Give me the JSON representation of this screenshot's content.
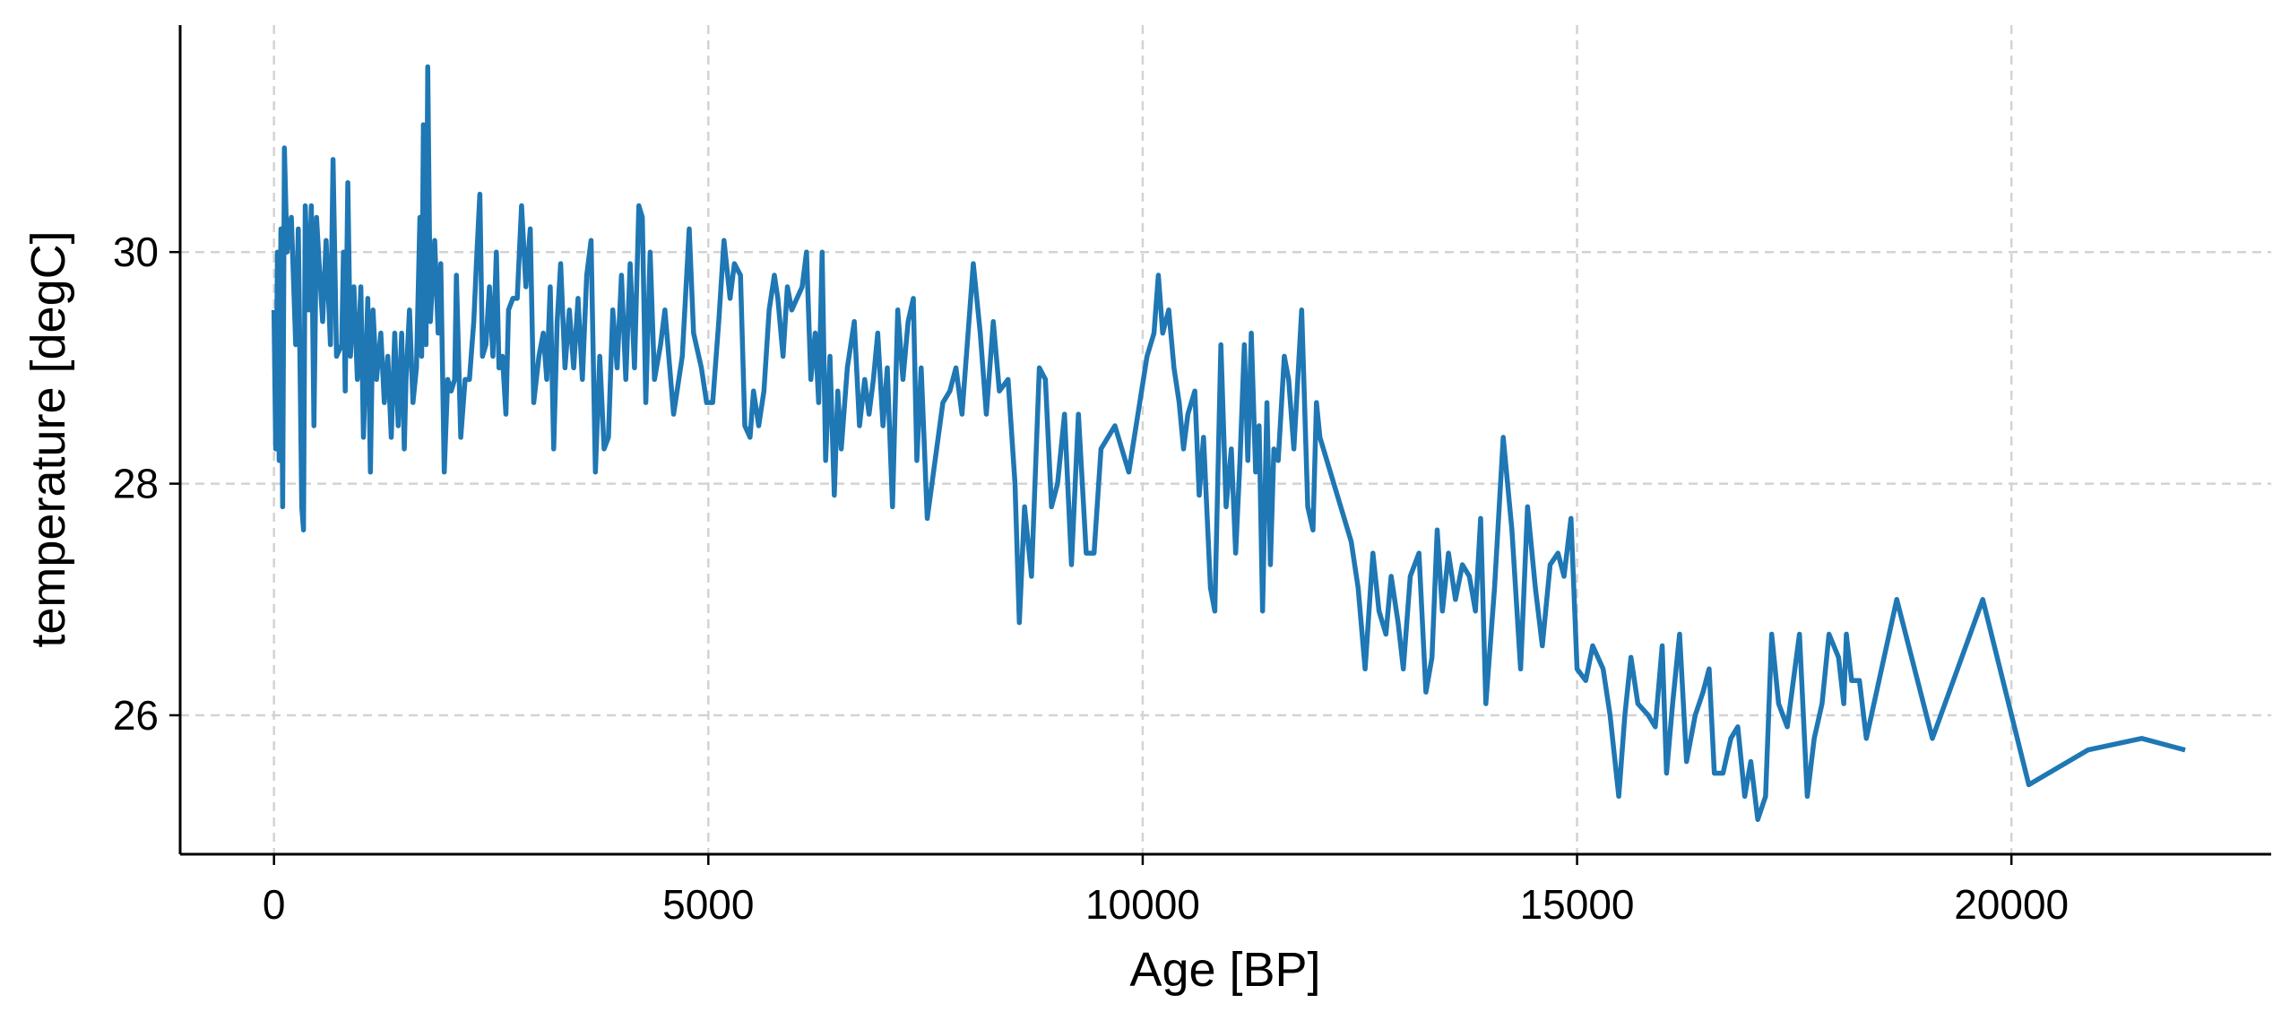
{
  "chart_data": {
    "type": "line",
    "xlabel": "Age [BP]",
    "ylabel": "temperature [degC]",
    "color": "#1f77b4",
    "grid": true,
    "xlim": [
      -1080,
      22990
    ],
    "ylim": [
      24.8,
      31.96
    ],
    "xticks": [
      0,
      5000,
      10000,
      15000,
      20000
    ],
    "yticks": [
      26,
      28,
      30
    ],
    "x": [
      0,
      20,
      40,
      60,
      80,
      100,
      120,
      150,
      200,
      250,
      280,
      320,
      340,
      360,
      400,
      430,
      460,
      490,
      520,
      560,
      600,
      650,
      680,
      720,
      780,
      800,
      820,
      850,
      880,
      920,
      960,
      1000,
      1030,
      1080,
      1110,
      1140,
      1180,
      1230,
      1270,
      1310,
      1350,
      1390,
      1430,
      1470,
      1500,
      1520,
      1560,
      1600,
      1640,
      1680,
      1700,
      1720,
      1750,
      1770,
      1800,
      1850,
      1890,
      1920,
      1960,
      2000,
      2040,
      2080,
      2100,
      2150,
      2200,
      2250,
      2300,
      2330,
      2370,
      2400,
      2440,
      2480,
      2520,
      2560,
      2590,
      2630,
      2670,
      2700,
      2750,
      2800,
      2850,
      2900,
      2950,
      2990,
      3050,
      3100,
      3140,
      3180,
      3220,
      3260,
      3300,
      3350,
      3400,
      3450,
      3500,
      3550,
      3600,
      3650,
      3700,
      3750,
      3800,
      3850,
      3900,
      3950,
      4000,
      4050,
      4100,
      4150,
      4200,
      4240,
      4280,
      4330,
      4380,
      4450,
      4500,
      4600,
      4700,
      4780,
      4830,
      4920,
      4980,
      5050,
      5120,
      5180,
      5250,
      5300,
      5370,
      5420,
      5480,
      5520,
      5580,
      5640,
      5700,
      5760,
      5800,
      5860,
      5910,
      5960,
      6020,
      6080,
      6130,
      6180,
      6230,
      6270,
      6310,
      6350,
      6400,
      6450,
      6490,
      6530,
      6600,
      6680,
      6740,
      6800,
      6850,
      6900,
      6950,
      7010,
      7060,
      7120,
      7180,
      7240,
      7300,
      7360,
      7400,
      7450,
      7520,
      7700,
      7780,
      7850,
      7920,
      7980,
      8050,
      8130,
      8200,
      8280,
      8350,
      8450,
      8530,
      8580,
      8640,
      8720,
      8810,
      8880,
      8950,
      9020,
      9100,
      9180,
      9260,
      9350,
      9440,
      9520,
      9680,
      9840,
      10050,
      10130,
      10180,
      10230,
      10300,
      10360,
      10420,
      10470,
      10520,
      10600,
      10650,
      10700,
      10780,
      10830,
      10900,
      10960,
      11020,
      11070,
      11120,
      11170,
      11210,
      11250,
      11300,
      11340,
      11380,
      11430,
      11470,
      11510,
      11560,
      11630,
      11680,
      11740,
      11830,
      11900,
      11960,
      12000,
      12040,
      12400,
      12480,
      12560,
      12650,
      12720,
      12800,
      12860,
      12940,
      13000,
      13080,
      13180,
      13260,
      13330,
      13390,
      13450,
      13520,
      13600,
      13680,
      13760,
      13830,
      13890,
      13950,
      14050,
      14150,
      14250,
      14350,
      14430,
      14520,
      14600,
      14690,
      14780,
      14850,
      14930,
      15000,
      15100,
      15180,
      15300,
      15380,
      15480,
      15550,
      15620,
      15700,
      15820,
      15900,
      15980,
      16030,
      16100,
      16180,
      16260,
      16360,
      16450,
      16520,
      16580,
      16680,
      16770,
      16850,
      16930,
      17000,
      17080,
      17170,
      17240,
      17320,
      17420,
      17560,
      17650,
      17730,
      17820,
      17900,
      18010,
      18070,
      18100,
      18160,
      18250,
      18330,
      18680,
      19090,
      19670,
      20200,
      20880,
      21500,
      22000
    ],
    "values": [
      29.5,
      28.3,
      30.0,
      28.2,
      30.2,
      27.8,
      30.9,
      30.0,
      30.3,
      29.2,
      30.2,
      27.8,
      27.6,
      30.4,
      29.5,
      30.4,
      28.5,
      30.3,
      29.9,
      29.4,
      30.1,
      29.2,
      30.8,
      29.1,
      29.2,
      30.0,
      28.8,
      30.6,
      29.1,
      29.7,
      28.9,
      29.7,
      28.4,
      29.6,
      28.1,
      29.5,
      28.9,
      29.3,
      28.7,
      29.1,
      28.4,
      29.3,
      28.5,
      29.3,
      28.3,
      28.9,
      29.5,
      28.7,
      29.0,
      30.3,
      29.1,
      31.1,
      29.2,
      31.6,
      29.4,
      30.1,
      29.3,
      29.9,
      28.1,
      28.9,
      28.8,
      28.9,
      29.8,
      28.4,
      28.9,
      28.9,
      29.4,
      29.9,
      30.5,
      29.1,
      29.2,
      29.7,
      29.1,
      30.0,
      29.0,
      29.1,
      28.6,
      29.5,
      29.6,
      29.6,
      30.4,
      29.7,
      30.2,
      28.7,
      29.1,
      29.3,
      28.9,
      29.7,
      28.3,
      29.4,
      29.9,
      29.0,
      29.5,
      29.0,
      29.6,
      28.9,
      29.8,
      30.1,
      28.1,
      29.1,
      28.3,
      28.4,
      29.5,
      29.0,
      29.8,
      28.9,
      29.9,
      29.0,
      30.4,
      30.3,
      28.7,
      30.0,
      28.9,
      29.2,
      29.5,
      28.6,
      29.1,
      30.2,
      29.3,
      29.0,
      28.7,
      28.7,
      29.4,
      30.1,
      29.6,
      29.9,
      29.8,
      28.5,
      28.4,
      28.8,
      28.5,
      28.8,
      29.5,
      29.8,
      29.6,
      29.1,
      29.7,
      29.5,
      29.6,
      29.7,
      30.0,
      28.9,
      29.3,
      28.7,
      30.0,
      28.2,
      29.1,
      27.9,
      28.8,
      28.3,
      29.0,
      29.4,
      28.5,
      28.9,
      28.6,
      28.9,
      29.3,
      28.5,
      29.0,
      27.8,
      29.5,
      28.9,
      29.4,
      29.6,
      28.2,
      29.0,
      27.7,
      28.7,
      28.8,
      29.0,
      28.6,
      29.2,
      29.9,
      29.3,
      28.6,
      29.4,
      28.8,
      28.9,
      28.0,
      26.8,
      27.8,
      27.2,
      29.0,
      28.9,
      27.8,
      28.0,
      28.6,
      27.3,
      28.6,
      27.4,
      27.4,
      28.3,
      28.5,
      28.1,
      29.1,
      29.3,
      29.8,
      29.3,
      29.5,
      29.0,
      28.7,
      28.3,
      28.6,
      28.8,
      27.9,
      28.4,
      27.1,
      26.9,
      29.2,
      27.8,
      28.3,
      27.4,
      28.2,
      29.2,
      28.2,
      29.3,
      28.1,
      28.5,
      26.9,
      28.7,
      27.3,
      28.3,
      28.2,
      29.1,
      28.9,
      28.3,
      29.5,
      27.8,
      27.6,
      28.7,
      28.4,
      27.5,
      27.1,
      26.4,
      27.4,
      26.9,
      26.7,
      27.2,
      26.8,
      26.4,
      27.2,
      27.4,
      26.2,
      26.5,
      27.6,
      26.9,
      27.4,
      27.0,
      27.3,
      27.2,
      26.9,
      27.7,
      26.1,
      27.1,
      28.4,
      27.6,
      26.4,
      27.8,
      27.1,
      26.6,
      27.3,
      27.4,
      27.2,
      27.7,
      26.4,
      26.3,
      26.6,
      26.4,
      26.0,
      25.3,
      26.0,
      26.5,
      26.1,
      26.0,
      25.9,
      26.6,
      25.5,
      26.1,
      26.7,
      25.6,
      26.0,
      26.2,
      26.4,
      25.5,
      25.5,
      25.8,
      25.9,
      25.3,
      25.6,
      25.1,
      25.3,
      26.7,
      26.1,
      25.9,
      26.7,
      25.3,
      25.8,
      26.1,
      26.7,
      26.5,
      26.1,
      26.7,
      26.3,
      26.3,
      25.8,
      27.0,
      25.8,
      27.0,
      25.4,
      25.7,
      25.8,
      25.7
    ]
  }
}
